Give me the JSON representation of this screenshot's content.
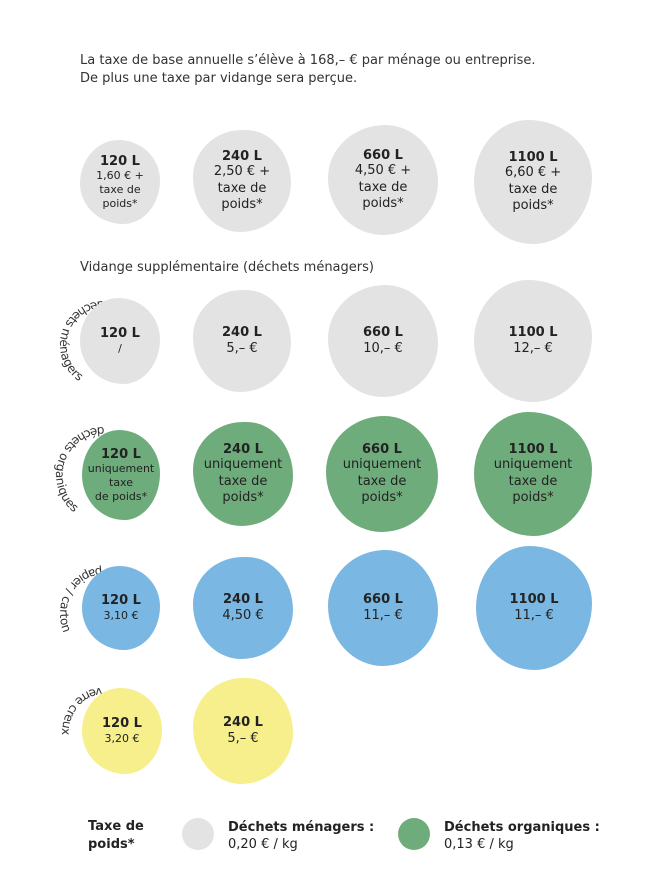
{
  "intro": {
    "line1": "La taxe de base annuelle s’élève à 168,– € par ménage ou entreprise.",
    "line2": "De plus une taxe par vidange sera perçue."
  },
  "base": {
    "items": [
      {
        "size": "120 L",
        "price": "1,60 € +\ntaxe de\npoids*"
      },
      {
        "size": "240 L",
        "price": "2,50 € +\ntaxe de\npoids*"
      },
      {
        "size": "660 L",
        "price": "4,50 € +\ntaxe de\npoids*"
      },
      {
        "size": "1100 L",
        "price": "6,60 € +\ntaxe de\npoids*"
      }
    ]
  },
  "supplementary_title": "Vidange supplémentaire (déchets ménagers)",
  "menagers": {
    "label": "déchets ménagers",
    "color": "#e3e3e4",
    "items": [
      {
        "size": "120 L",
        "price": "/"
      },
      {
        "size": "240 L",
        "price": "5,– €"
      },
      {
        "size": "660 L",
        "price": "10,– €"
      },
      {
        "size": "1100 L",
        "price": "12,– €"
      }
    ]
  },
  "organiques": {
    "label": "déchets organiques",
    "color": "#6fac7c",
    "items": [
      {
        "size": "120 L",
        "price": "uniquement\ntaxe\nde poids*"
      },
      {
        "size": "240 L",
        "price": "uniquement\ntaxe de\npoids*"
      },
      {
        "size": "660 L",
        "price": "uniquement\ntaxe de\npoids*"
      },
      {
        "size": "1100 L",
        "price": "uniquement\ntaxe de\npoids*"
      }
    ]
  },
  "papier": {
    "label": "papier / carton",
    "color": "#7ab7e2",
    "items": [
      {
        "size": "120 L",
        "price": "3,10 €"
      },
      {
        "size": "240 L",
        "price": "4,50 €"
      },
      {
        "size": "660 L",
        "price": "11,– €"
      },
      {
        "size": "1100 L",
        "price": "11,– €"
      }
    ]
  },
  "verre": {
    "label": "verre creux",
    "color": "#f7ef8c",
    "items": [
      {
        "size": "120 L",
        "price": "3,20 €"
      },
      {
        "size": "240 L",
        "price": "5,– €"
      }
    ]
  },
  "legend": {
    "title": "Taxe de\npoids*",
    "menagers_title": "Déchets ménagers :",
    "menagers_value": "0,20 € / kg",
    "organiques_title": "Déchets organiques :",
    "organiques_value": "0,13 € / kg"
  }
}
